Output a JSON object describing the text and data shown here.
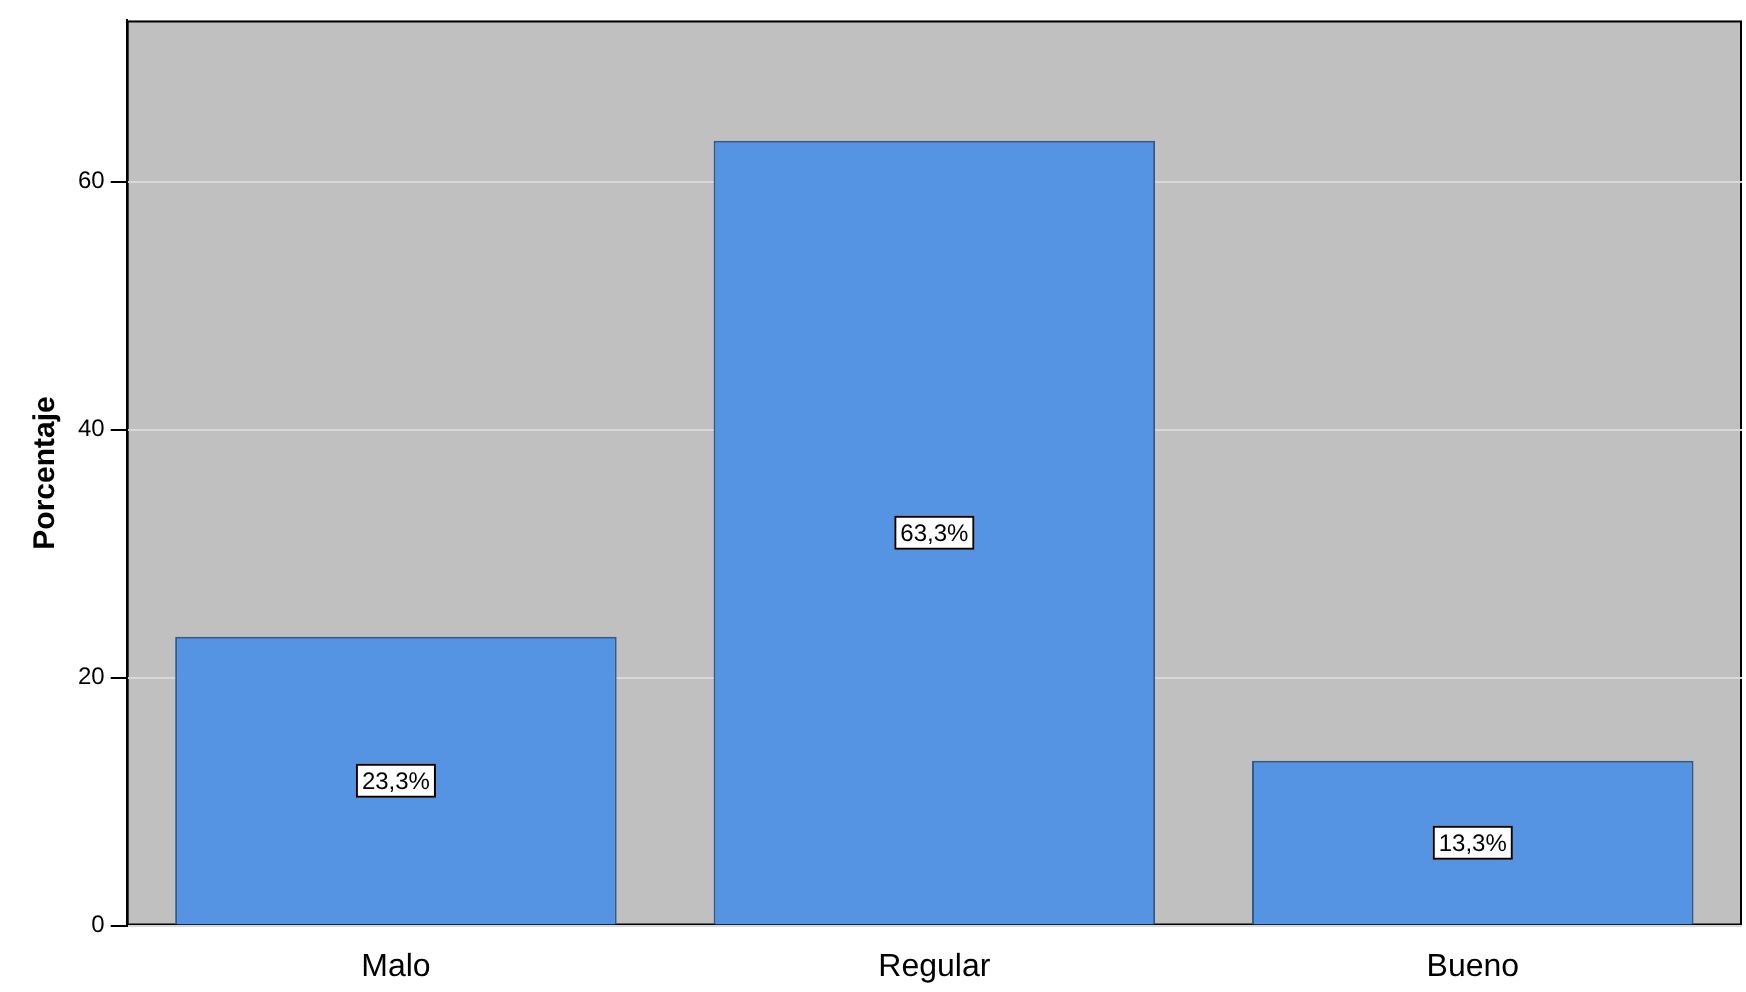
{
  "chart_data": {
    "type": "bar",
    "ylabel": "Porcentaje",
    "categories": [
      "Malo",
      "Regular",
      "Bueno"
    ],
    "values": [
      23.3,
      63.3,
      13.3
    ],
    "value_labels": [
      "23,3%",
      "63,3%",
      "13,3%"
    ],
    "color": "#5594e3",
    "ylim": [
      0,
      73
    ],
    "yticks": [
      0,
      20,
      40,
      60
    ],
    "grid": "y",
    "legend": false
  }
}
